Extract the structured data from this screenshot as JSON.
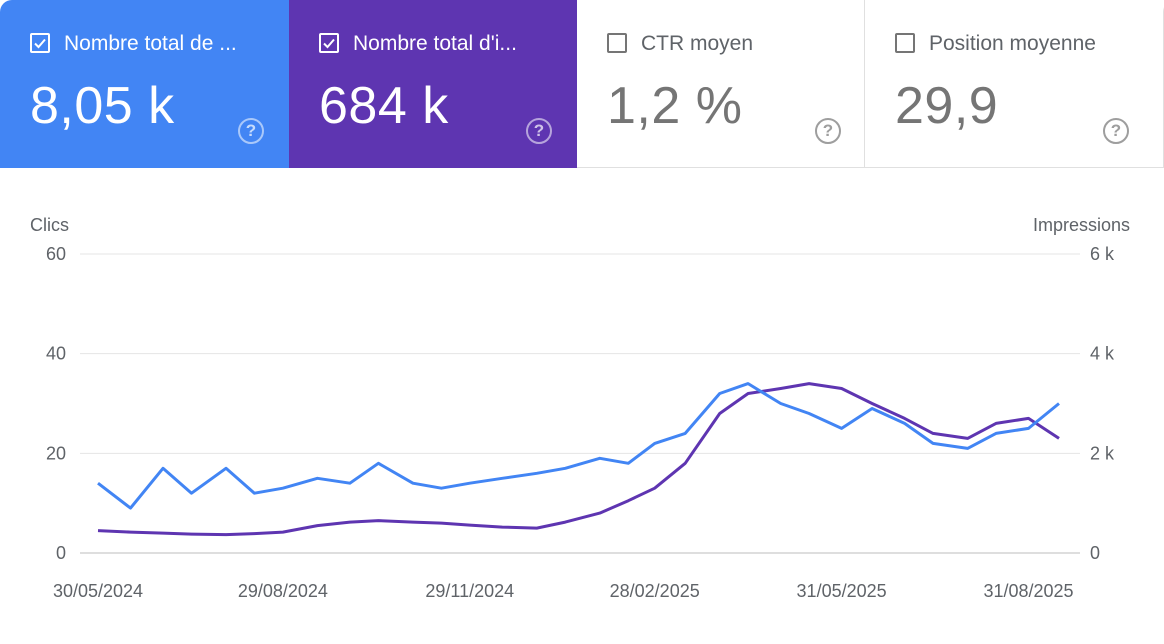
{
  "metrics": [
    {
      "label": "Nombre total de ...",
      "value": "8,05 k",
      "checked": true,
      "bg": "#4285f4"
    },
    {
      "label": "Nombre total d'i...",
      "value": "684 k",
      "checked": true,
      "bg": "#5e35b1"
    },
    {
      "label": "CTR moyen",
      "value": "1,2 %",
      "checked": false,
      "bg": "#ffffff"
    },
    {
      "label": "Position moyenne",
      "value": "29,9",
      "checked": false,
      "bg": "#ffffff"
    }
  ],
  "help_glyph": "?",
  "chart_data": {
    "type": "line",
    "left_axis_title": "Clics",
    "right_axis_title": "Impressions",
    "left_ticks": [
      "0",
      "20",
      "40",
      "60"
    ],
    "right_ticks": [
      "0",
      "2 k",
      "4 k",
      "6 k"
    ],
    "left_ylim": [
      0,
      60
    ],
    "right_ylim": [
      0,
      6000
    ],
    "grid": true,
    "x_labels": [
      "30/05/2024",
      "29/08/2024",
      "29/11/2024",
      "28/02/2025",
      "31/05/2025",
      "31/08/2025"
    ],
    "x_range": [
      "30/05/2024",
      "15/09/2025"
    ],
    "series": [
      {
        "name": "Nombre total de clics",
        "axis": "left",
        "color": "#4285f4",
        "points": [
          [
            "30/05/2024",
            14
          ],
          [
            "15/06/2024",
            9
          ],
          [
            "01/07/2024",
            17
          ],
          [
            "15/07/2024",
            12
          ],
          [
            "01/08/2024",
            17
          ],
          [
            "15/08/2024",
            12
          ],
          [
            "29/08/2024",
            13
          ],
          [
            "15/09/2024",
            15
          ],
          [
            "01/10/2024",
            14
          ],
          [
            "15/10/2024",
            18
          ],
          [
            "01/11/2024",
            14
          ],
          [
            "15/11/2024",
            13
          ],
          [
            "29/11/2024",
            14
          ],
          [
            "15/12/2024",
            15
          ],
          [
            "01/01/2025",
            16
          ],
          [
            "15/01/2025",
            17
          ],
          [
            "01/02/2025",
            19
          ],
          [
            "15/02/2025",
            18
          ],
          [
            "28/02/2025",
            22
          ],
          [
            "15/03/2025",
            24
          ],
          [
            "01/04/2025",
            32
          ],
          [
            "15/04/2025",
            34
          ],
          [
            "01/05/2025",
            30
          ],
          [
            "15/05/2025",
            28
          ],
          [
            "31/05/2025",
            25
          ],
          [
            "15/06/2025",
            29
          ],
          [
            "01/07/2025",
            26
          ],
          [
            "15/07/2025",
            22
          ],
          [
            "01/08/2025",
            21
          ],
          [
            "15/08/2025",
            24
          ],
          [
            "31/08/2025",
            25
          ],
          [
            "15/09/2025",
            30
          ]
        ]
      },
      {
        "name": "Nombre total d'impressions",
        "axis": "right",
        "color": "#5e35b1",
        "points": [
          [
            "30/05/2024",
            450
          ],
          [
            "15/06/2024",
            420
          ],
          [
            "01/07/2024",
            400
          ],
          [
            "15/07/2024",
            380
          ],
          [
            "01/08/2024",
            370
          ],
          [
            "15/08/2024",
            390
          ],
          [
            "29/08/2024",
            420
          ],
          [
            "15/09/2024",
            550
          ],
          [
            "01/10/2024",
            620
          ],
          [
            "15/10/2024",
            650
          ],
          [
            "01/11/2024",
            620
          ],
          [
            "15/11/2024",
            600
          ],
          [
            "29/11/2024",
            560
          ],
          [
            "15/12/2024",
            520
          ],
          [
            "01/01/2025",
            500
          ],
          [
            "15/01/2025",
            620
          ],
          [
            "01/02/2025",
            800
          ],
          [
            "15/02/2025",
            1050
          ],
          [
            "28/02/2025",
            1300
          ],
          [
            "15/03/2025",
            1800
          ],
          [
            "01/04/2025",
            2800
          ],
          [
            "15/04/2025",
            3200
          ],
          [
            "01/05/2025",
            3300
          ],
          [
            "15/05/2025",
            3400
          ],
          [
            "31/05/2025",
            3300
          ],
          [
            "15/06/2025",
            3000
          ],
          [
            "01/07/2025",
            2700
          ],
          [
            "15/07/2025",
            2400
          ],
          [
            "01/08/2025",
            2300
          ],
          [
            "15/08/2025",
            2600
          ],
          [
            "31/08/2025",
            2700
          ],
          [
            "15/09/2025",
            2300
          ]
        ]
      }
    ]
  }
}
